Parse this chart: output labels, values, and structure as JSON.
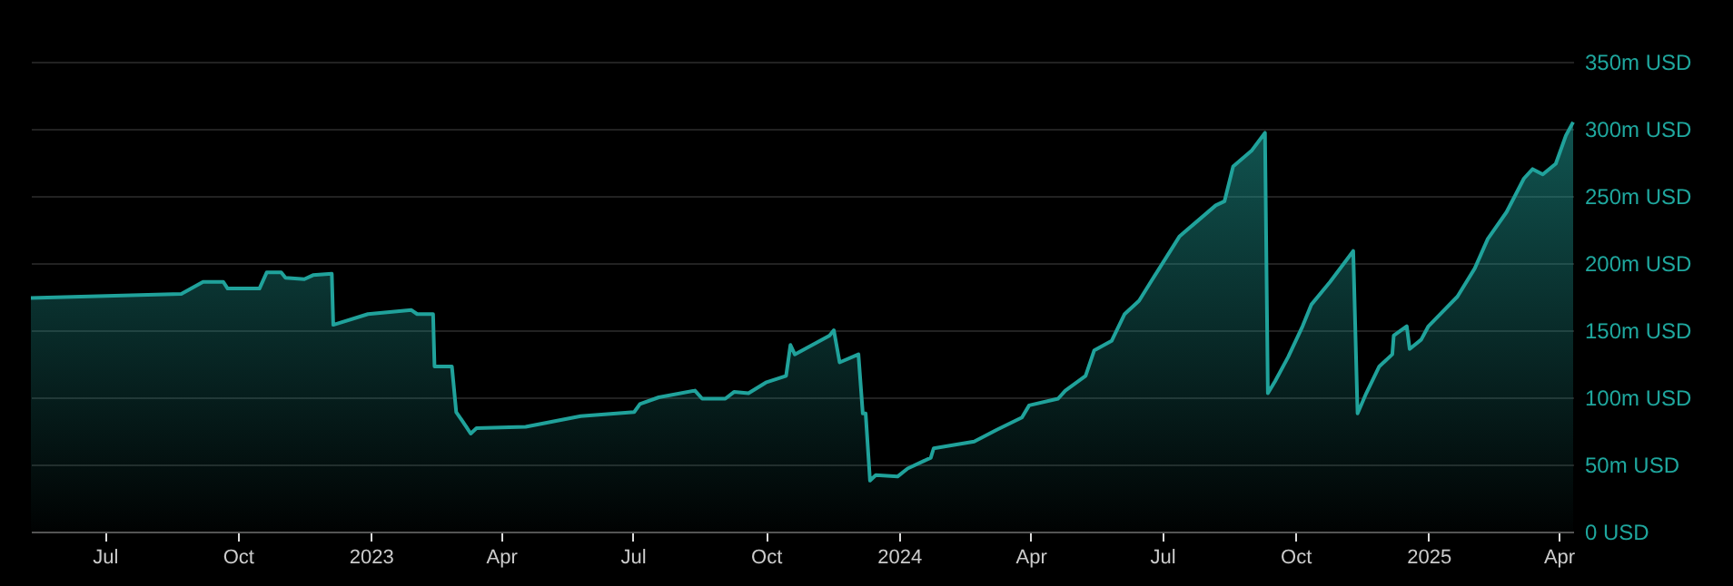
{
  "chart_data": {
    "type": "area",
    "grid": "y",
    "xlim": [
      "2022-05-11",
      "2025-04-11"
    ],
    "xticks": [
      {
        "value": "2022-07-01",
        "label": "Jul"
      },
      {
        "value": "2022-10-01",
        "label": "Oct"
      },
      {
        "value": "2023-01-01",
        "label": "2023"
      },
      {
        "value": "2023-04-01",
        "label": "Apr"
      },
      {
        "value": "2023-07-01",
        "label": "Jul"
      },
      {
        "value": "2023-10-01",
        "label": "Oct"
      },
      {
        "value": "2024-01-01",
        "label": "2024"
      },
      {
        "value": "2024-04-01",
        "label": "Apr"
      },
      {
        "value": "2024-07-01",
        "label": "Jul"
      },
      {
        "value": "2024-10-01",
        "label": "Oct"
      },
      {
        "value": "2025-01-01",
        "label": "2025"
      },
      {
        "value": "2025-04-01",
        "label": "Apr"
      }
    ],
    "ylim": [
      0,
      350
    ],
    "yticks": [
      {
        "value": 0,
        "label": "0 USD"
      },
      {
        "value": 50,
        "label": "50m USD"
      },
      {
        "value": 100,
        "label": "100m USD"
      },
      {
        "value": 150,
        "label": "150m USD"
      },
      {
        "value": 200,
        "label": "200m USD"
      },
      {
        "value": 250,
        "label": "250m USD"
      },
      {
        "value": 300,
        "label": "300m USD"
      },
      {
        "value": 350,
        "label": "350m USD"
      }
    ],
    "x": [
      "2022-05-11",
      "2022-08-23",
      "2022-09-07",
      "2022-09-21",
      "2022-09-24",
      "2022-10-16",
      "2022-10-21",
      "2022-10-31",
      "2022-11-03",
      "2022-11-16",
      "2022-11-22",
      "2022-12-05",
      "2022-12-06",
      "2022-12-30",
      "2023-01-29",
      "2023-02-02",
      "2023-02-13",
      "2023-02-14",
      "2023-02-26",
      "2023-03-01",
      "2023-03-08",
      "2023-03-11",
      "2023-03-15",
      "2023-04-18",
      "2023-05-26",
      "2023-07-02",
      "2023-07-06",
      "2023-07-19",
      "2023-08-13",
      "2023-08-18",
      "2023-09-03",
      "2023-09-09",
      "2023-09-19",
      "2023-10-01",
      "2023-10-15",
      "2023-10-18",
      "2023-10-21",
      "2023-11-14",
      "2023-11-17",
      "2023-11-21",
      "2023-12-04",
      "2023-12-07",
      "2023-12-09",
      "2023-12-12",
      "2023-12-16",
      "2023-12-31",
      "2024-01-07",
      "2024-01-23",
      "2024-01-25",
      "2024-02-22",
      "2024-03-09",
      "2024-03-26",
      "2024-03-31",
      "2024-04-20",
      "2024-04-25",
      "2024-05-09",
      "2024-05-15",
      "2024-05-27",
      "2024-06-05",
      "2024-06-15",
      "2024-06-26",
      "2024-07-13",
      "2024-07-25",
      "2024-08-07",
      "2024-08-13",
      "2024-08-19",
      "2024-09-01",
      "2024-09-10",
      "2024-09-12",
      "2024-09-17",
      "2024-09-26",
      "2024-10-06",
      "2024-10-12",
      "2024-10-25",
      "2024-11-10",
      "2024-11-13",
      "2024-11-19",
      "2024-11-28",
      "2024-12-07",
      "2024-12-08",
      "2024-12-17",
      "2024-12-19",
      "2024-12-27",
      "2025-01-01",
      "2025-01-21",
      "2025-02-02",
      "2025-02-11",
      "2025-02-24",
      "2025-03-08",
      "2025-03-14",
      "2025-03-21",
      "2025-03-30",
      "2025-04-06",
      "2025-04-11"
    ],
    "series": [
      {
        "color": "#20a29b",
        "values": [
          174,
          177,
          186,
          186,
          181,
          181,
          193,
          193,
          189,
          188,
          191,
          192,
          154,
          162,
          165,
          162,
          162,
          123,
          123,
          89,
          78,
          73,
          77,
          78,
          86,
          89,
          95,
          100,
          105,
          99,
          99,
          104,
          103,
          111,
          116,
          139,
          132,
          146,
          150,
          126,
          132,
          88,
          88,
          38,
          42,
          41,
          47,
          55,
          62,
          67,
          76,
          85,
          94,
          99,
          105,
          116,
          135,
          142,
          162,
          172,
          191,
          220,
          231,
          243,
          246,
          272,
          284,
          297,
          103,
          112,
          130,
          153,
          169,
          186,
          209,
          88,
          103,
          123,
          132,
          146,
          153,
          136,
          143,
          153,
          175,
          196,
          218,
          238,
          263,
          270,
          266,
          274,
          295,
          305
        ]
      }
    ]
  }
}
